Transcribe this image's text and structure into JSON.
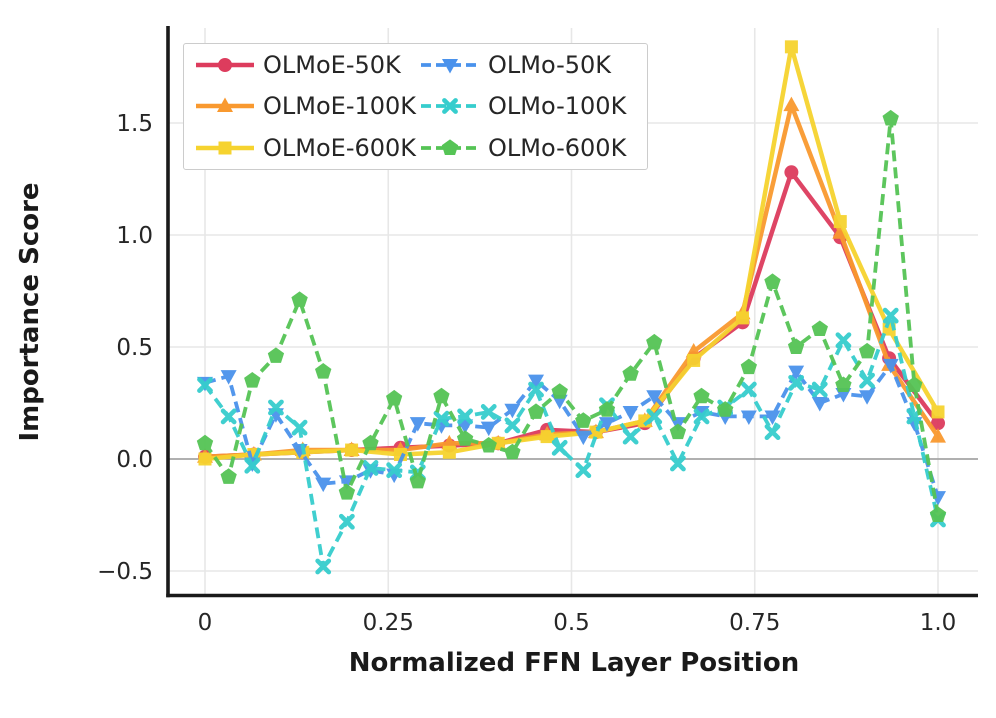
{
  "figure": {
    "ylabel": "Importance Score",
    "xlabel": "Normalized FFN Layer Position",
    "background": "#ffffff"
  },
  "chart_data": {
    "type": "line",
    "title": "",
    "xlabel": "Normalized FFN Layer Position",
    "ylabel": "Importance Score",
    "xlim": [
      -0.05,
      1.055
    ],
    "ylim": [
      -0.61,
      1.92
    ],
    "x_ticks": [
      0,
      0.25,
      0.5,
      0.75,
      1.0
    ],
    "x_tick_labels": [
      "0",
      "0.25",
      "0.5",
      "0.75",
      "1.0"
    ],
    "y_ticks": [
      -0.5,
      0.0,
      0.5,
      1.0,
      1.5
    ],
    "y_tick_labels": [
      "−0.5",
      "0.0",
      "0.5",
      "1.0",
      "1.5"
    ],
    "grid": true,
    "zero_line": true,
    "grid_color": "#e7e7e7",
    "zero_line_color": "#9a9a9a",
    "legend_position": "upper-left",
    "legend_columns": 2,
    "x_note": "each series has points evenly spaced from 0 to 1 (normalized layer position, x_i = i/(n-1))",
    "series": [
      {
        "name": "OLMoE-50K",
        "color": "#dd3c5d",
        "linestyle": "solid",
        "marker": "circle",
        "n_points": 16,
        "values": [
          0.01,
          0.02,
          0.03,
          0.04,
          0.05,
          0.06,
          0.07,
          0.13,
          0.12,
          0.16,
          0.45,
          0.61,
          1.28,
          0.99,
          0.45,
          0.16
        ]
      },
      {
        "name": "OLMoE-100K",
        "color": "#f9992f",
        "linestyle": "solid",
        "marker": "triangle-up",
        "n_points": 16,
        "values": [
          0.01,
          0.02,
          0.04,
          0.04,
          0.04,
          0.07,
          0.07,
          0.11,
          0.12,
          0.17,
          0.48,
          0.65,
          1.58,
          1.01,
          0.42,
          0.1
        ]
      },
      {
        "name": "OLMoE-600K",
        "color": "#f6d32f",
        "linestyle": "solid",
        "marker": "square",
        "n_points": 16,
        "values": [
          0.0,
          0.02,
          0.03,
          0.04,
          0.02,
          0.03,
          0.07,
          0.1,
          0.12,
          0.17,
          0.44,
          0.63,
          1.84,
          1.06,
          0.58,
          0.21
        ]
      },
      {
        "name": "OLMo-50K",
        "color": "#4a92ec",
        "linestyle": "dashed",
        "marker": "triangle-down",
        "n_points": 32,
        "values": [
          0.34,
          0.37,
          -0.02,
          0.2,
          0.04,
          -0.11,
          -0.1,
          -0.05,
          -0.07,
          0.16,
          0.15,
          0.15,
          0.14,
          0.22,
          0.35,
          0.26,
          0.1,
          0.16,
          0.21,
          0.28,
          0.16,
          0.21,
          0.19,
          0.19,
          0.19,
          0.39,
          0.25,
          0.29,
          0.28,
          0.42,
          0.16,
          -0.17
        ]
      },
      {
        "name": "OLMo-100K",
        "color": "#36cdcd",
        "linestyle": "dashed",
        "marker": "x",
        "n_points": 32,
        "values": [
          0.33,
          0.19,
          -0.03,
          0.23,
          0.14,
          -0.48,
          -0.28,
          -0.04,
          -0.05,
          -0.06,
          0.18,
          0.19,
          0.21,
          0.15,
          0.31,
          0.05,
          -0.05,
          0.24,
          0.1,
          0.19,
          -0.02,
          0.19,
          0.23,
          0.31,
          0.12,
          0.34,
          0.31,
          0.53,
          0.35,
          0.64,
          0.19,
          -0.27
        ]
      },
      {
        "name": "OLMo-600K",
        "color": "#55c455",
        "linestyle": "dashed",
        "marker": "pentagon",
        "n_points": 32,
        "values": [
          0.07,
          -0.08,
          0.35,
          0.46,
          0.71,
          0.39,
          -0.15,
          0.07,
          0.27,
          -0.1,
          0.28,
          0.09,
          0.06,
          0.03,
          0.21,
          0.3,
          0.17,
          0.22,
          0.38,
          0.52,
          0.12,
          0.28,
          0.22,
          0.41,
          0.79,
          0.5,
          0.58,
          0.33,
          0.48,
          1.52,
          0.33,
          -0.25
        ]
      }
    ]
  }
}
